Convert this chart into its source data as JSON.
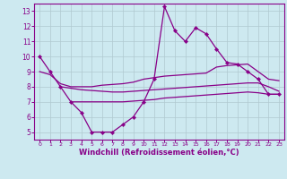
{
  "line_main_x": [
    0,
    1,
    2,
    3,
    4,
    5,
    6,
    7,
    8,
    9,
    10,
    11,
    12,
    13,
    14,
    15,
    16,
    17,
    18,
    19,
    20,
    21,
    22,
    23
  ],
  "line_main_y": [
    10,
    9,
    8,
    7,
    6.3,
    5,
    5,
    5,
    5.5,
    6,
    7,
    8.5,
    13.3,
    11.7,
    11,
    11.9,
    11.5,
    10.5,
    9.6,
    9.5,
    9,
    8.5,
    7.5,
    7.5
  ],
  "line_upper_x": [
    0,
    1,
    2,
    3,
    4,
    5,
    6,
    7,
    8,
    9,
    10,
    11,
    12,
    13,
    14,
    15,
    16,
    17,
    18,
    19,
    20,
    21,
    22,
    23
  ],
  "line_upper_y": [
    9.0,
    8.8,
    8.2,
    8.0,
    8.0,
    8.0,
    8.1,
    8.15,
    8.2,
    8.3,
    8.5,
    8.6,
    8.7,
    8.75,
    8.8,
    8.85,
    8.9,
    9.3,
    9.4,
    9.45,
    9.5,
    9.0,
    8.5,
    8.4
  ],
  "line_mid_x": [
    2,
    3,
    4,
    5,
    6,
    7,
    8,
    9,
    10,
    11,
    12,
    13,
    14,
    15,
    16,
    17,
    18,
    19,
    20,
    21,
    22,
    23
  ],
  "line_mid_y": [
    8.0,
    7.9,
    7.8,
    7.75,
    7.7,
    7.65,
    7.65,
    7.7,
    7.75,
    7.8,
    7.85,
    7.9,
    7.95,
    8.0,
    8.05,
    8.1,
    8.15,
    8.2,
    8.25,
    8.25,
    8.0,
    7.7
  ],
  "line_lower_x": [
    3,
    4,
    5,
    6,
    7,
    8,
    9,
    10,
    11,
    12,
    13,
    14,
    15,
    16,
    17,
    18,
    19,
    20,
    21,
    22,
    23
  ],
  "line_lower_y": [
    7.0,
    7.0,
    7.0,
    7.0,
    7.0,
    7.0,
    7.05,
    7.1,
    7.15,
    7.25,
    7.3,
    7.35,
    7.4,
    7.45,
    7.5,
    7.55,
    7.6,
    7.65,
    7.6,
    7.5,
    7.5
  ],
  "xlim": [
    -0.5,
    23.5
  ],
  "ylim": [
    4.5,
    13.5
  ],
  "xticks": [
    0,
    1,
    2,
    3,
    4,
    5,
    6,
    7,
    8,
    9,
    10,
    11,
    12,
    13,
    14,
    15,
    16,
    17,
    18,
    19,
    20,
    21,
    22,
    23
  ],
  "yticks": [
    5,
    6,
    7,
    8,
    9,
    10,
    11,
    12,
    13
  ],
  "xlabel": "Windchill (Refroidissement éolien,°C)",
  "background_color": "#cde9f0",
  "grid_color": "#b0c8d0",
  "line_color": "#880088",
  "tick_color": "#880088",
  "label_color": "#880088",
  "spine_color": "#880088"
}
